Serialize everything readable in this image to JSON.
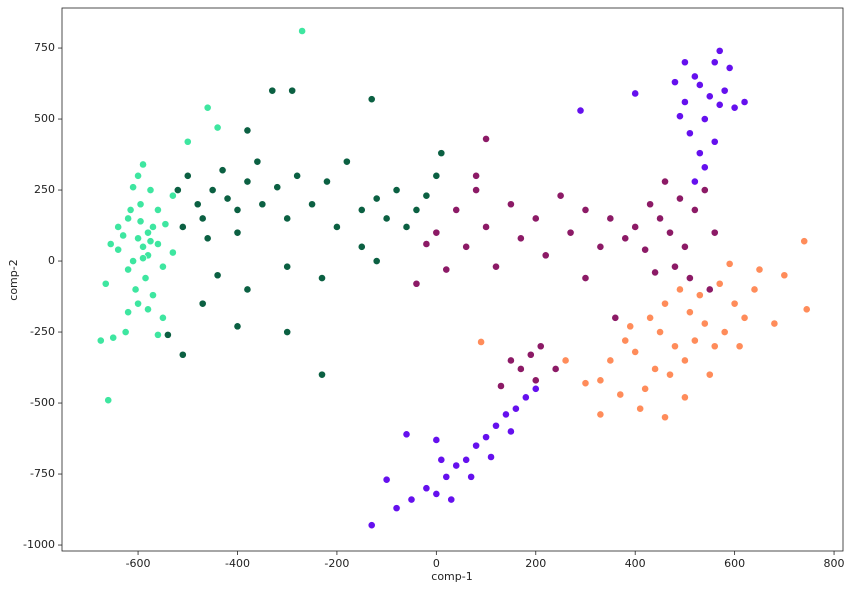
{
  "chart_data": {
    "type": "scatter",
    "xlabel": "comp-1",
    "ylabel": "comp-2",
    "xlim": [
      -753,
      818
    ],
    "ylim": [
      -1021,
      891
    ],
    "xticks": [
      -600,
      -400,
      -200,
      0,
      200,
      400,
      600,
      800
    ],
    "yticks": [
      -1000,
      -750,
      -500,
      -250,
      0,
      250,
      500,
      750
    ],
    "series": [
      {
        "color": "#3ee6a0",
        "x": [
          -590,
          -600,
          -580,
          -570,
          -610,
          -620,
          -560,
          -550,
          -630,
          -640,
          -595,
          -585,
          -575,
          -605,
          -615,
          -545,
          -530,
          -655,
          -665,
          -600,
          -580,
          -620,
          -560,
          -590,
          -570,
          -610,
          -640,
          -550,
          -600,
          -625,
          -575,
          -595,
          -530,
          -660,
          -675,
          -650,
          -620,
          -560,
          -580,
          -460,
          -440,
          -270,
          -500,
          -590
        ],
        "values": [
          50,
          80,
          20,
          120,
          0,
          150,
          60,
          -20,
          90,
          40,
          200,
          -60,
          250,
          -100,
          180,
          130,
          30,
          60,
          -80,
          -150,
          100,
          -30,
          180,
          10,
          -120,
          260,
          120,
          -200,
          300,
          -250,
          70,
          140,
          230,
          -490,
          -280,
          -270,
          -180,
          -260,
          -170,
          540,
          470,
          810,
          420,
          340
        ]
      },
      {
        "color": "#0b6042",
        "x": [
          -420,
          -450,
          -400,
          -380,
          -470,
          -500,
          -350,
          -430,
          -480,
          -520,
          -400,
          -360,
          -460,
          -440,
          -510,
          -320,
          -300,
          -280,
          -250,
          -220,
          -200,
          -180,
          -150,
          -120,
          -100,
          -80,
          -60,
          -40,
          -20,
          0,
          10,
          -150,
          -230,
          -300,
          -380,
          -470,
          -540,
          -400,
          -300,
          -230,
          -120,
          -330,
          -290,
          -130,
          -380,
          -510
        ],
        "values": [
          220,
          250,
          180,
          280,
          150,
          300,
          200,
          320,
          200,
          250,
          100,
          350,
          80,
          -50,
          120,
          260,
          150,
          300,
          200,
          280,
          120,
          350,
          180,
          220,
          150,
          250,
          120,
          180,
          230,
          300,
          380,
          50,
          -60,
          -20,
          -100,
          -150,
          -260,
          -230,
          -250,
          -400,
          0,
          600,
          600,
          570,
          460,
          -330
        ]
      },
      {
        "color": "#8c1a66",
        "x": [
          470,
          450,
          500,
          430,
          520,
          480,
          400,
          540,
          460,
          420,
          510,
          380,
          440,
          560,
          490,
          350,
          330,
          300,
          270,
          250,
          220,
          200,
          170,
          150,
          120,
          100,
          80,
          60,
          40,
          20,
          0,
          -20,
          -40,
          300,
          360,
          550,
          170,
          200,
          150,
          190,
          130,
          210,
          240,
          80,
          100
        ],
        "values": [
          100,
          150,
          50,
          200,
          180,
          -20,
          120,
          250,
          280,
          40,
          -60,
          80,
          -40,
          100,
          220,
          150,
          50,
          180,
          100,
          230,
          20,
          150,
          80,
          200,
          -20,
          120,
          250,
          50,
          180,
          -30,
          100,
          60,
          -80,
          -60,
          -200,
          -100,
          -380,
          -420,
          -350,
          -330,
          -440,
          -300,
          -380,
          300,
          430
        ]
      },
      {
        "color": "#6510ee",
        "x": [
          550,
          530,
          570,
          520,
          560,
          540,
          580,
          510,
          590,
          560,
          530,
          500,
          600,
          570,
          540,
          500,
          480,
          620,
          520,
          490,
          -80,
          -50,
          -20,
          0,
          20,
          40,
          60,
          80,
          100,
          120,
          140,
          160,
          180,
          200,
          30,
          70,
          10,
          110,
          150,
          -130,
          -100,
          -60,
          0,
          290,
          400
        ],
        "values": [
          580,
          620,
          550,
          650,
          700,
          500,
          600,
          450,
          680,
          420,
          380,
          560,
          540,
          740,
          330,
          700,
          630,
          560,
          280,
          510,
          -870,
          -840,
          -800,
          -820,
          -760,
          -720,
          -700,
          -650,
          -620,
          -580,
          -540,
          -520,
          -480,
          -450,
          -840,
          -760,
          -700,
          -690,
          -600,
          -930,
          -770,
          -610,
          -630,
          530,
          590
        ]
      },
      {
        "color": "#ff8c5a",
        "x": [
          480,
          450,
          500,
          430,
          520,
          470,
          400,
          540,
          460,
          420,
          510,
          380,
          440,
          560,
          490,
          350,
          330,
          580,
          600,
          620,
          640,
          410,
          460,
          500,
          550,
          370,
          390,
          530,
          570,
          610,
          740,
          700,
          745,
          680,
          90,
          260,
          300,
          330,
          650,
          590
        ],
        "values": [
          -300,
          -250,
          -350,
          -200,
          -280,
          -400,
          -320,
          -220,
          -150,
          -450,
          -180,
          -280,
          -380,
          -300,
          -100,
          -350,
          -420,
          -250,
          -150,
          -200,
          -100,
          -520,
          -550,
          -480,
          -400,
          -470,
          -230,
          -120,
          -80,
          -300,
          70,
          -50,
          -170,
          -220,
          -285,
          -350,
          -430,
          -540,
          -30,
          -10
        ]
      }
    ]
  }
}
